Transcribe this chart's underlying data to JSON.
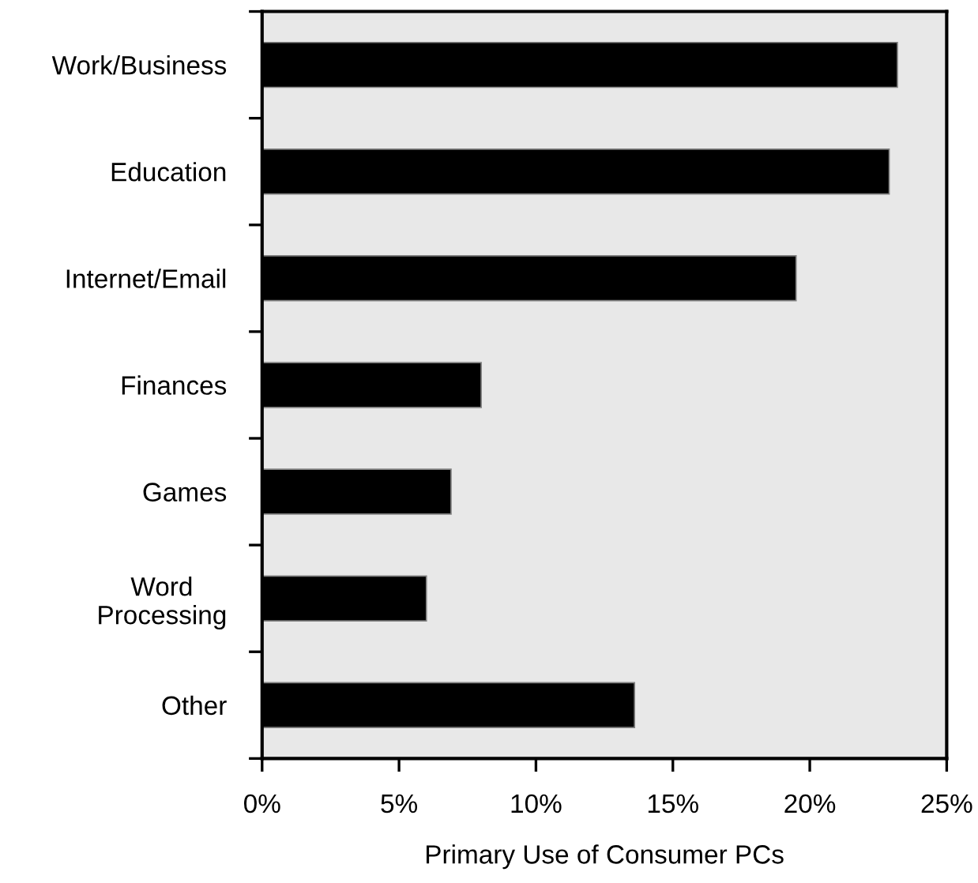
{
  "chart_data": {
    "type": "bar",
    "orientation": "horizontal",
    "xlabel": "Primary Use of Consumer PCs",
    "categories": [
      "Work/Business",
      "Education",
      "Internet/Email",
      "Finances",
      "Games",
      "Word\nProcessing",
      "Other"
    ],
    "values": [
      23.2,
      22.9,
      19.5,
      8.0,
      6.9,
      6.0,
      13.6
    ],
    "color": "#000000",
    "xlim": [
      0,
      25
    ],
    "xticks": [
      {
        "value": 0,
        "label": "0%"
      },
      {
        "value": 5,
        "label": "5%"
      },
      {
        "value": 10,
        "label": "10%"
      },
      {
        "value": 15,
        "label": "15%"
      },
      {
        "value": 20,
        "label": "20%"
      },
      {
        "value": 25,
        "label": "25%"
      }
    ],
    "grid": false
  }
}
